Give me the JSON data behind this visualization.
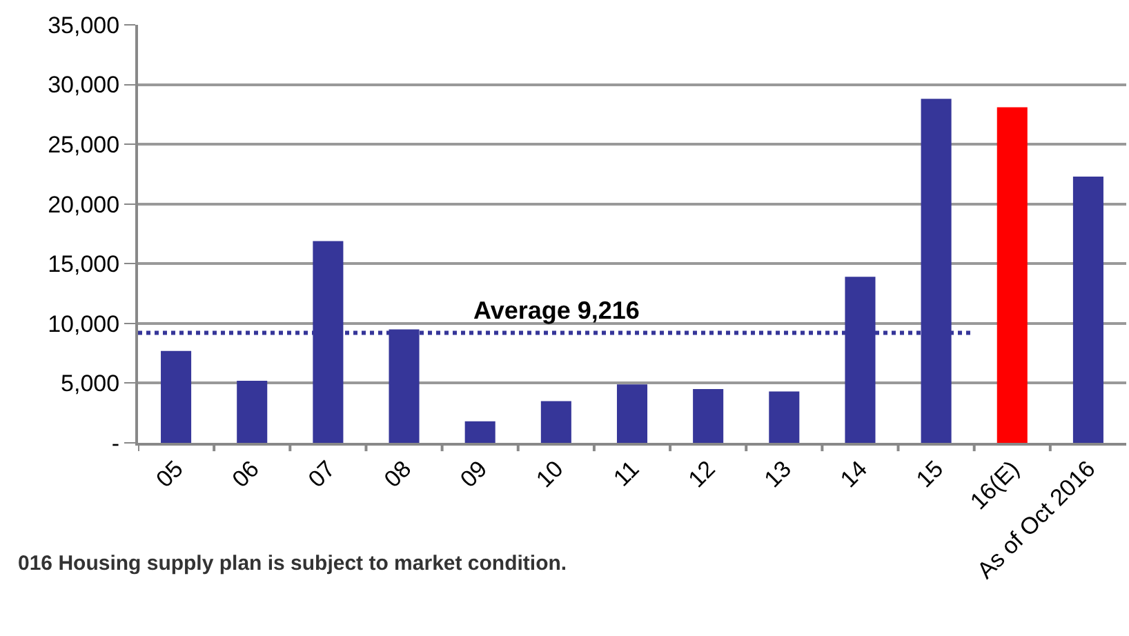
{
  "chart_data": {
    "type": "bar",
    "categories": [
      "05",
      "06",
      "07",
      "08",
      "09",
      "10",
      "11",
      "12",
      "13",
      "14",
      "15",
      "16(E)",
      "As of Oct 2016"
    ],
    "values": [
      7700,
      5200,
      16900,
      9500,
      1800,
      3500,
      4900,
      4500,
      4300,
      13900,
      28800,
      28100,
      22300
    ],
    "colors": [
      "#363699",
      "#363699",
      "#363699",
      "#363699",
      "#363699",
      "#363699",
      "#363699",
      "#363699",
      "#363699",
      "#363699",
      "#363699",
      "#ff0000",
      "#363699"
    ],
    "ylim": [
      0,
      35000
    ],
    "yticks": [
      {
        "value": 0,
        "label": "-"
      },
      {
        "value": 5000,
        "label": "5,000"
      },
      {
        "value": 10000,
        "label": "10,000"
      },
      {
        "value": 15000,
        "label": "15,000"
      },
      {
        "value": 20000,
        "label": "20,000"
      },
      {
        "value": 25000,
        "label": "25,000"
      },
      {
        "value": 30000,
        "label": "30,000"
      },
      {
        "value": 35000,
        "label": "35,000"
      }
    ],
    "grid": "y",
    "ref_lines": [
      {
        "axis": "y",
        "value": 9216,
        "label": "Average 9,216",
        "color": "#363699",
        "line_style": "dotted"
      }
    ],
    "annotations": [
      "016 Housing supply plan is subject to market condition."
    ]
  }
}
